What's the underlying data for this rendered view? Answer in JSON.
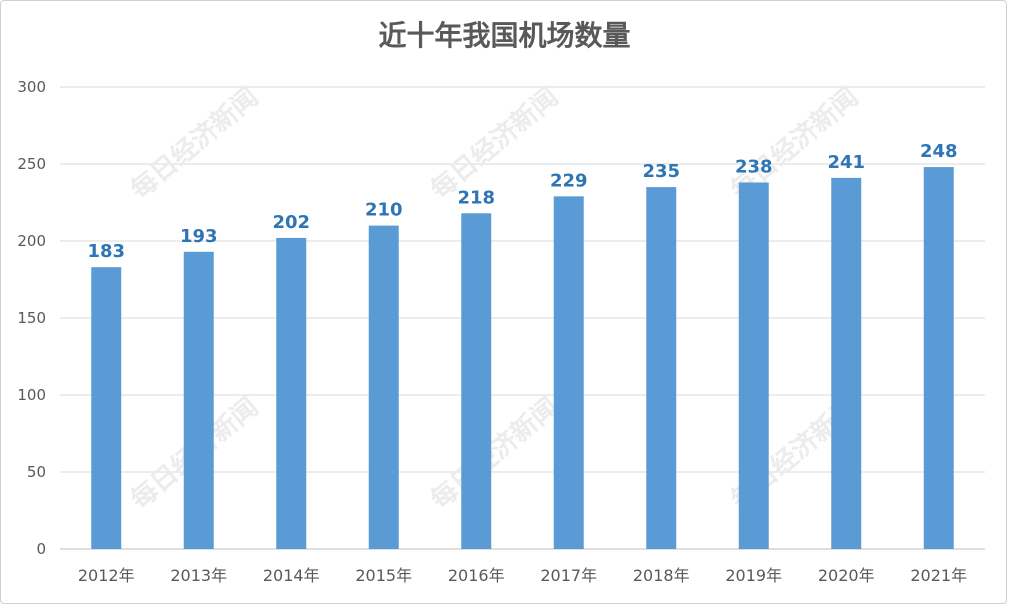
{
  "chart_data": {
    "type": "bar",
    "title": "近十年我国机场数量",
    "categories": [
      "2012年",
      "2013年",
      "2014年",
      "2015年",
      "2016年",
      "2017年",
      "2018年",
      "2019年",
      "2020年",
      "2021年"
    ],
    "values": [
      183,
      193,
      202,
      210,
      218,
      229,
      235,
      238,
      241,
      248
    ],
    "xlabel": "",
    "ylabel": "",
    "ylim": [
      0,
      300
    ],
    "yticks": [
      0,
      50,
      100,
      150,
      200,
      250,
      300
    ],
    "grid": true,
    "legend": "none",
    "bar_color": "#5b9bd5",
    "label_color": "#2e75b6",
    "grid_color": "#d9d9d9"
  },
  "watermark": {
    "text": "每日经济新闻"
  }
}
